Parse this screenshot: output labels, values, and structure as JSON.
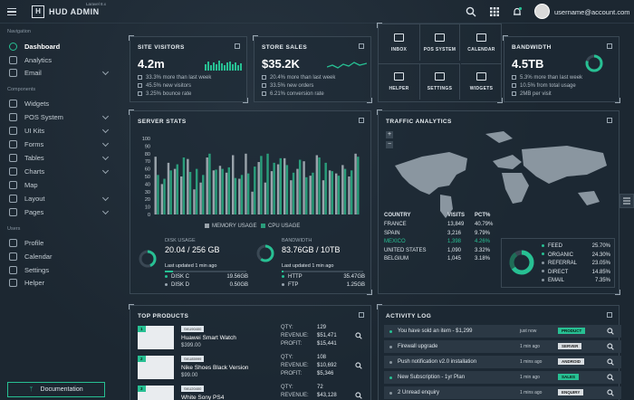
{
  "header": {
    "logo_letter": "H",
    "brand": "HUD ADMIN",
    "version": "Laravel 8.x",
    "username": "username@account.com"
  },
  "sidebar": {
    "sections": [
      {
        "title": "Navigation"
      },
      {
        "title": "Components"
      },
      {
        "title": "Users"
      }
    ],
    "items": [
      {
        "label": "Dashboard"
      },
      {
        "label": "Analytics"
      },
      {
        "label": "Email"
      },
      {
        "label": "Widgets"
      },
      {
        "label": "POS System"
      },
      {
        "label": "UI Kits"
      },
      {
        "label": "Forms"
      },
      {
        "label": "Tables"
      },
      {
        "label": "Charts"
      },
      {
        "label": "Map"
      },
      {
        "label": "Layout"
      },
      {
        "label": "Pages"
      },
      {
        "label": "Profile"
      },
      {
        "label": "Calendar"
      },
      {
        "label": "Settings"
      },
      {
        "label": "Helper"
      }
    ],
    "doc_button": "Documentation"
  },
  "site_visitors": {
    "title": "SITE VISITORS",
    "value": "4.2m",
    "lines": [
      "33.3% more than last week",
      "45.5% new visitors",
      "3.25% bounce rate"
    ]
  },
  "store_sales": {
    "title": "STORE SALES",
    "value": "$35.2K",
    "lines": [
      "20.4% more than last week",
      "33.5% new orders",
      "6.21% conversion rate"
    ]
  },
  "quick_apps": {
    "items": [
      "INBOX",
      "POS SYSTEM",
      "CALENDAR",
      "HELPER",
      "SETTINGS",
      "WIDGETS"
    ]
  },
  "bandwidth": {
    "title": "BANDWIDTH",
    "value": "4.5TB",
    "lines": [
      "5.3% more than last week",
      "10.5% from total usage",
      "2MB per visit"
    ]
  },
  "server_stats": {
    "title": "SERVER STATS",
    "legend": [
      "MEMORY USAGE",
      "CPU USAGE"
    ],
    "disk": {
      "label": "DISK USAGE",
      "value": "20.04 / 256 GB",
      "updated": "Last updated 1 min ago",
      "rows": [
        {
          "name": "DISK C",
          "val": "19.56GB"
        },
        {
          "name": "DISK D",
          "val": "0.50GB"
        }
      ]
    },
    "bw": {
      "label": "BANDWIDTH",
      "value": "83.76GB / 10TB",
      "updated": "Last updated 1 min ago",
      "rows": [
        {
          "name": "HTTP",
          "val": "35.47GB"
        },
        {
          "name": "FTP",
          "val": "1.25GB"
        }
      ]
    }
  },
  "chart_data": {
    "type": "bar",
    "title": "",
    "yticks": [
      "100",
      "90",
      "80",
      "70",
      "60",
      "50",
      "40",
      "30",
      "20",
      "10",
      "0"
    ],
    "ylim": [
      0,
      100
    ],
    "series": [
      {
        "name": "MEMORY USAGE",
        "color": "#9aa3ab",
        "values": [
          76,
          40,
          68,
          60,
          50,
          73,
          33,
          42,
          75,
          58,
          64,
          55,
          78,
          47,
          80,
          30,
          69,
          42,
          57,
          66,
          74,
          45,
          60,
          70,
          51,
          78,
          45,
          58,
          54,
          65,
          50,
          80
        ]
      },
      {
        "name": "CPU USAGE",
        "color": "#2a9d7b",
        "values": [
          52,
          47,
          58,
          66,
          75,
          56,
          60,
          52,
          80,
          59,
          60,
          62,
          48,
          52,
          54,
          63,
          77,
          80,
          68,
          74,
          65,
          55,
          72,
          49,
          55,
          75,
          68,
          57,
          51,
          60,
          58,
          76
        ]
      }
    ]
  },
  "traffic": {
    "title": "TRAFFIC ANALYTICS",
    "headers": [
      "COUNTRY",
      "VISITS",
      "PCT%"
    ],
    "rows": [
      {
        "country": "FRANCE",
        "visits": "13,849",
        "pct": "40.79%",
        "hl": false
      },
      {
        "country": "SPAIN",
        "visits": "3,216",
        "pct": "9.79%",
        "hl": false
      },
      {
        "country": "MEXICO",
        "visits": "1,398",
        "pct": "4.26%",
        "hl": true
      },
      {
        "country": "UNITED STATES",
        "visits": "1,090",
        "pct": "3.32%",
        "hl": false
      },
      {
        "country": "BELGIUM",
        "visits": "1,045",
        "pct": "3.18%",
        "hl": false
      }
    ],
    "sources": [
      {
        "name": "FEED",
        "pct": "25.70%"
      },
      {
        "name": "ORGANIC",
        "pct": "24.30%"
      },
      {
        "name": "REFERRAL",
        "pct": "23.05%"
      },
      {
        "name": "DIRECT",
        "pct": "14.85%"
      },
      {
        "name": "EMAIL",
        "pct": "7.35%"
      }
    ]
  },
  "top_products": {
    "title": "TOP PRODUCTS",
    "items": [
      {
        "rank": "1",
        "sku": "SKU90400",
        "name": "Huawei Smart Watch",
        "price": "$399.00",
        "qty": "129",
        "revenue": "$51,471",
        "profit": "$15,441"
      },
      {
        "rank": "2",
        "sku": "SKU85999",
        "name": "Nike Shoes Black Version",
        "price": "$99.00",
        "qty": "108",
        "revenue": "$10,692",
        "profit": "$5,346"
      },
      {
        "rank": "3",
        "sku": "SKU20400",
        "name": "White Sony PS4",
        "price": "",
        "qty": "72",
        "revenue": "$43,128",
        "profit": ""
      }
    ],
    "labels": {
      "qty": "QTY:",
      "revenue": "REVENUE:",
      "profit": "PROFIT:"
    }
  },
  "activity": {
    "title": "ACTIVITY LOG",
    "items": [
      {
        "text": "You have sold an item - $1,299",
        "time": "just now",
        "badge": "PRODUCT",
        "green": true
      },
      {
        "text": "Firewall upgrade",
        "time": "1 min ago",
        "badge": "SERVER",
        "green": false
      },
      {
        "text": "Push notification v2.0 installation",
        "time": "1 mins ago",
        "badge": "ANDROID",
        "green": false
      },
      {
        "text": "New Subscription - 1yr Plan",
        "time": "1 min ago",
        "badge": "SALES",
        "green": true
      },
      {
        "text": "2 Unread enquiry",
        "time": "1 mins ago",
        "badge": "ENQUIRY",
        "green": false
      }
    ]
  }
}
